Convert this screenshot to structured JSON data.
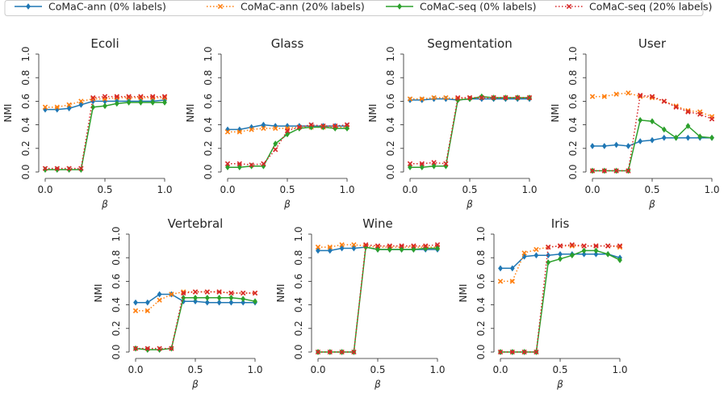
{
  "chart_data": {
    "type": "line",
    "legend": {
      "placement": "top",
      "entries": [
        {
          "name": "CoMaC-ann (0% labels)",
          "color": "#1f77b4",
          "line": "solid",
          "marker": "diamond"
        },
        {
          "name": "CoMaC-ann (20% labels)",
          "color": "#ff7f0e",
          "line": "dotted",
          "marker": "x"
        },
        {
          "name": "CoMaC-seq (0% labels)",
          "color": "#2ca02c",
          "line": "solid",
          "marker": "diamond"
        },
        {
          "name": "CoMaC-seq (20% labels)",
          "color": "#d62728",
          "line": "dotted",
          "marker": "x"
        }
      ]
    },
    "x_ticks": [
      "0.0",
      "0.5",
      "1.0"
    ],
    "y_ticks": [
      "0.0",
      "0.2",
      "0.4",
      "0.6",
      "0.8",
      "1.0"
    ],
    "xlabel": "β",
    "ylabel": "NMI",
    "xlim": [
      0,
      1
    ],
    "ylim": [
      0,
      1
    ],
    "grid": false,
    "x": [
      0.0,
      0.1,
      0.2,
      0.3,
      0.4,
      0.5,
      0.6,
      0.7,
      0.8,
      0.9,
      1.0
    ],
    "panels": [
      {
        "title": "Ecoli",
        "series": [
          {
            "name": "CoMaC-ann (0% labels)",
            "values": [
              0.53,
              0.53,
              0.54,
              0.57,
              0.6,
              0.6,
              0.6,
              0.6,
              0.6,
              0.6,
              0.61
            ]
          },
          {
            "name": "CoMaC-ann (20% labels)",
            "values": [
              0.55,
              0.55,
              0.57,
              0.6,
              0.62,
              0.62,
              0.63,
              0.63,
              0.63,
              0.63,
              0.63
            ]
          },
          {
            "name": "CoMaC-seq (0% labels)",
            "values": [
              0.02,
              0.02,
              0.02,
              0.02,
              0.55,
              0.56,
              0.58,
              0.59,
              0.59,
              0.59,
              0.59
            ]
          },
          {
            "name": "CoMaC-seq (20% labels)",
            "values": [
              0.03,
              0.03,
              0.03,
              0.03,
              0.63,
              0.64,
              0.64,
              0.64,
              0.64,
              0.64,
              0.64
            ]
          }
        ]
      },
      {
        "title": "Glass",
        "series": [
          {
            "name": "CoMaC-ann (0% labels)",
            "values": [
              0.36,
              0.36,
              0.38,
              0.4,
              0.39,
              0.39,
              0.39,
              0.39,
              0.39,
              0.39,
              0.39
            ]
          },
          {
            "name": "CoMaC-ann (20% labels)",
            "values": [
              0.34,
              0.34,
              0.36,
              0.37,
              0.37,
              0.37,
              0.38,
              0.38,
              0.38,
              0.38,
              0.38
            ]
          },
          {
            "name": "CoMaC-seq (0% labels)",
            "values": [
              0.04,
              0.04,
              0.05,
              0.05,
              0.24,
              0.32,
              0.37,
              0.38,
              0.38,
              0.37,
              0.37
            ]
          },
          {
            "name": "CoMaC-seq (20% labels)",
            "values": [
              0.07,
              0.07,
              0.06,
              0.07,
              0.19,
              0.35,
              0.38,
              0.4,
              0.39,
              0.39,
              0.4
            ]
          }
        ]
      },
      {
        "title": "Segmentation",
        "series": [
          {
            "name": "CoMaC-ann (0% labels)",
            "values": [
              0.61,
              0.61,
              0.62,
              0.62,
              0.61,
              0.62,
              0.62,
              0.62,
              0.62,
              0.62,
              0.62
            ]
          },
          {
            "name": "CoMaC-ann (20% labels)",
            "values": [
              0.62,
              0.62,
              0.63,
              0.63,
              0.62,
              0.63,
              0.63,
              0.63,
              0.63,
              0.63,
              0.63
            ]
          },
          {
            "name": "CoMaC-seq (0% labels)",
            "values": [
              0.04,
              0.04,
              0.05,
              0.05,
              0.61,
              0.62,
              0.64,
              0.63,
              0.63,
              0.63,
              0.63
            ]
          },
          {
            "name": "CoMaC-seq (20% labels)",
            "values": [
              0.07,
              0.07,
              0.08,
              0.07,
              0.63,
              0.63,
              0.63,
              0.63,
              0.63,
              0.63,
              0.63
            ]
          }
        ]
      },
      {
        "title": "User",
        "series": [
          {
            "name": "CoMaC-ann (0% labels)",
            "values": [
              0.22,
              0.22,
              0.23,
              0.22,
              0.26,
              0.27,
              0.29,
              0.29,
              0.29,
              0.29,
              0.29
            ]
          },
          {
            "name": "CoMaC-ann (20% labels)",
            "values": [
              0.64,
              0.64,
              0.66,
              0.67,
              0.64,
              0.63,
              0.6,
              0.56,
              0.52,
              0.51,
              0.47
            ]
          },
          {
            "name": "CoMaC-seq (0% labels)",
            "values": [
              0.01,
              0.01,
              0.01,
              0.01,
              0.44,
              0.43,
              0.36,
              0.29,
              0.39,
              0.3,
              0.29
            ]
          },
          {
            "name": "CoMaC-seq (20% labels)",
            "values": [
              0.01,
              0.01,
              0.01,
              0.01,
              0.65,
              0.64,
              0.6,
              0.55,
              0.51,
              0.49,
              0.45
            ]
          }
        ]
      },
      {
        "title": "Vertebral",
        "series": [
          {
            "name": "CoMaC-ann (0% labels)",
            "values": [
              0.42,
              0.42,
              0.49,
              0.49,
              0.43,
              0.43,
              0.42,
              0.42,
              0.42,
              0.42,
              0.42
            ]
          },
          {
            "name": "CoMaC-ann (20% labels)",
            "values": [
              0.35,
              0.35,
              0.44,
              0.49,
              0.51,
              0.51,
              0.51,
              0.51,
              0.5,
              0.5,
              0.5
            ]
          },
          {
            "name": "CoMaC-seq (0% labels)",
            "values": [
              0.03,
              0.02,
              0.02,
              0.03,
              0.46,
              0.46,
              0.46,
              0.46,
              0.46,
              0.45,
              0.43
            ]
          },
          {
            "name": "CoMaC-seq (20% labels)",
            "values": [
              0.03,
              0.03,
              0.03,
              0.03,
              0.5,
              0.51,
              0.51,
              0.51,
              0.5,
              0.5,
              0.5
            ]
          }
        ]
      },
      {
        "title": "Wine",
        "series": [
          {
            "name": "CoMaC-ann (0% labels)",
            "values": [
              0.86,
              0.86,
              0.88,
              0.88,
              0.89,
              0.87,
              0.87,
              0.87,
              0.87,
              0.87,
              0.87
            ]
          },
          {
            "name": "CoMaC-ann (20% labels)",
            "values": [
              0.89,
              0.89,
              0.91,
              0.91,
              0.9,
              0.89,
              0.89,
              0.89,
              0.89,
              0.89,
              0.89
            ]
          },
          {
            "name": "CoMaC-seq (0% labels)",
            "values": [
              0.0,
              0.0,
              0.0,
              0.0,
              0.89,
              0.87,
              0.87,
              0.87,
              0.87,
              0.88,
              0.88
            ]
          },
          {
            "name": "CoMaC-seq (20% labels)",
            "values": [
              0.0,
              0.0,
              0.0,
              0.0,
              0.91,
              0.9,
              0.9,
              0.9,
              0.9,
              0.9,
              0.91
            ]
          }
        ]
      },
      {
        "title": "Iris",
        "series": [
          {
            "name": "CoMaC-ann (0% labels)",
            "values": [
              0.71,
              0.71,
              0.81,
              0.82,
              0.82,
              0.83,
              0.83,
              0.83,
              0.83,
              0.83,
              0.8
            ]
          },
          {
            "name": "CoMaC-ann (20% labels)",
            "values": [
              0.6,
              0.6,
              0.84,
              0.87,
              0.89,
              0.9,
              0.9,
              0.9,
              0.9,
              0.9,
              0.89
            ]
          },
          {
            "name": "CoMaC-seq (0% labels)",
            "values": [
              0.0,
              0.0,
              0.0,
              0.0,
              0.76,
              0.79,
              0.82,
              0.86,
              0.86,
              0.83,
              0.78
            ]
          },
          {
            "name": "CoMaC-seq (20% labels)",
            "values": [
              0.0,
              0.0,
              0.0,
              0.0,
              0.89,
              0.9,
              0.91,
              0.9,
              0.9,
              0.9,
              0.9
            ]
          }
        ]
      }
    ]
  }
}
